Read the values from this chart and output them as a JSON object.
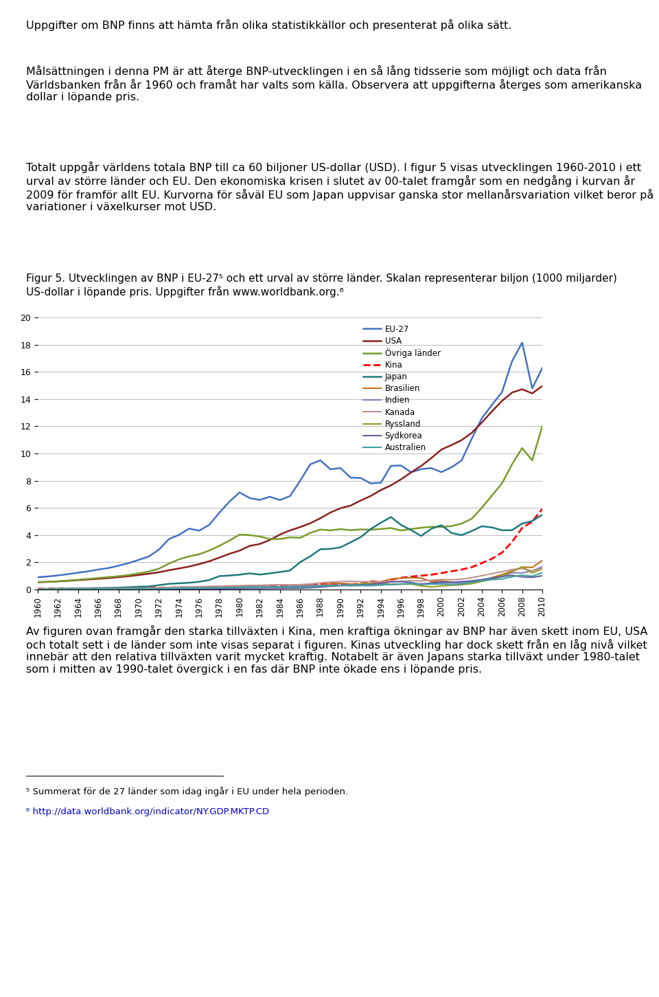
{
  "years": [
    1960,
    1961,
    1962,
    1963,
    1964,
    1965,
    1966,
    1967,
    1968,
    1969,
    1970,
    1971,
    1972,
    1973,
    1974,
    1975,
    1976,
    1977,
    1978,
    1979,
    1980,
    1981,
    1982,
    1983,
    1984,
    1985,
    1986,
    1987,
    1988,
    1989,
    1990,
    1991,
    1992,
    1993,
    1994,
    1995,
    1996,
    1997,
    1998,
    1999,
    2000,
    2001,
    2002,
    2003,
    2004,
    2005,
    2006,
    2007,
    2008,
    2009,
    2010
  ],
  "EU27": [
    0.91,
    0.96,
    1.04,
    1.13,
    1.24,
    1.34,
    1.47,
    1.58,
    1.75,
    1.94,
    2.18,
    2.43,
    2.93,
    3.71,
    4.02,
    4.48,
    4.33,
    4.76,
    5.65,
    6.46,
    7.14,
    6.72,
    6.59,
    6.82,
    6.58,
    6.87,
    7.99,
    9.2,
    9.5,
    8.84,
    8.93,
    8.23,
    8.2,
    7.8,
    7.85,
    9.09,
    9.12,
    8.62,
    8.85,
    8.93,
    8.63,
    8.99,
    9.48,
    11.08,
    12.58,
    13.57,
    14.5,
    16.78,
    18.15,
    14.79,
    16.28
  ],
  "USA": [
    0.54,
    0.56,
    0.6,
    0.64,
    0.69,
    0.74,
    0.79,
    0.84,
    0.91,
    0.98,
    1.07,
    1.16,
    1.27,
    1.42,
    1.55,
    1.69,
    1.87,
    2.08,
    2.35,
    2.63,
    2.86,
    3.21,
    3.35,
    3.64,
    4.04,
    4.35,
    4.59,
    4.87,
    5.24,
    5.66,
    5.98,
    6.17,
    6.54,
    6.88,
    7.31,
    7.66,
    8.1,
    8.61,
    9.09,
    9.66,
    10.29,
    10.62,
    10.98,
    11.51,
    12.27,
    13.09,
    13.86,
    14.48,
    14.72,
    14.42,
    14.96
  ],
  "Ovriga_lander": [
    0.55,
    0.57,
    0.61,
    0.66,
    0.72,
    0.78,
    0.85,
    0.91,
    0.98,
    1.06,
    1.19,
    1.32,
    1.53,
    1.91,
    2.22,
    2.44,
    2.59,
    2.87,
    3.21,
    3.6,
    4.04,
    4.0,
    3.9,
    3.72,
    3.71,
    3.84,
    3.8,
    4.16,
    4.41,
    4.35,
    4.44,
    4.36,
    4.42,
    4.4,
    4.45,
    4.52,
    4.34,
    4.45,
    4.54,
    4.61,
    4.6,
    4.66,
    4.85,
    5.2,
    6.0,
    6.9,
    7.8,
    9.2,
    10.4,
    9.5,
    12.0
  ],
  "Kina": [
    0.06,
    0.06,
    0.07,
    0.07,
    0.07,
    0.07,
    0.08,
    0.08,
    0.09,
    0.1,
    0.11,
    0.12,
    0.13,
    0.14,
    0.15,
    0.16,
    0.15,
    0.17,
    0.15,
    0.18,
    0.19,
    0.2,
    0.21,
    0.23,
    0.26,
    0.31,
    0.3,
    0.32,
    0.4,
    0.45,
    0.36,
    0.38,
    0.43,
    0.61,
    0.56,
    0.73,
    0.86,
    0.95,
    1.02,
    1.09,
    1.21,
    1.34,
    1.47,
    1.64,
    1.94,
    2.26,
    2.71,
    3.49,
    4.52,
    4.99,
    5.93
  ],
  "Japan": [
    0.04,
    0.05,
    0.06,
    0.07,
    0.08,
    0.09,
    0.11,
    0.12,
    0.14,
    0.17,
    0.21,
    0.23,
    0.32,
    0.42,
    0.46,
    0.5,
    0.57,
    0.7,
    0.99,
    1.03,
    1.09,
    1.19,
    1.1,
    1.19,
    1.29,
    1.4,
    2.01,
    2.44,
    2.96,
    2.99,
    3.1,
    3.47,
    3.85,
    4.45,
    4.91,
    5.33,
    4.75,
    4.37,
    3.94,
    4.47,
    4.73,
    4.16,
    4.0,
    4.3,
    4.65,
    4.57,
    4.36,
    4.36,
    4.85,
    5.04,
    5.49
  ],
  "Brasilien": [
    0.02,
    0.02,
    0.03,
    0.03,
    0.04,
    0.04,
    0.04,
    0.04,
    0.05,
    0.06,
    0.07,
    0.08,
    0.09,
    0.11,
    0.14,
    0.16,
    0.18,
    0.22,
    0.24,
    0.23,
    0.24,
    0.26,
    0.27,
    0.19,
    0.19,
    0.22,
    0.26,
    0.3,
    0.32,
    0.43,
    0.46,
    0.41,
    0.39,
    0.43,
    0.55,
    0.77,
    0.84,
    0.87,
    0.84,
    0.59,
    0.64,
    0.55,
    0.51,
    0.55,
    0.66,
    0.88,
    1.09,
    1.37,
    1.65,
    1.62,
    2.14
  ],
  "Indien": [
    0.04,
    0.04,
    0.04,
    0.05,
    0.05,
    0.05,
    0.05,
    0.06,
    0.06,
    0.06,
    0.06,
    0.07,
    0.07,
    0.08,
    0.1,
    0.1,
    0.1,
    0.11,
    0.12,
    0.13,
    0.16,
    0.19,
    0.2,
    0.22,
    0.21,
    0.23,
    0.24,
    0.28,
    0.3,
    0.3,
    0.32,
    0.27,
    0.29,
    0.28,
    0.33,
    0.37,
    0.4,
    0.42,
    0.43,
    0.47,
    0.48,
    0.49,
    0.52,
    0.62,
    0.72,
    0.83,
    0.94,
    1.24,
    1.22,
    1.37,
    1.68
  ],
  "Kanada": [
    0.04,
    0.04,
    0.05,
    0.05,
    0.06,
    0.06,
    0.07,
    0.07,
    0.08,
    0.09,
    0.09,
    0.1,
    0.12,
    0.15,
    0.17,
    0.19,
    0.21,
    0.23,
    0.25,
    0.27,
    0.28,
    0.31,
    0.31,
    0.34,
    0.35,
    0.35,
    0.36,
    0.41,
    0.49,
    0.54,
    0.59,
    0.6,
    0.58,
    0.57,
    0.58,
    0.6,
    0.61,
    0.64,
    0.63,
    0.68,
    0.74,
    0.72,
    0.76,
    0.87,
    1.02,
    1.17,
    1.31,
    1.47,
    1.55,
    1.37,
    1.58
  ],
  "Ryssland": [
    null,
    null,
    null,
    null,
    null,
    null,
    null,
    null,
    null,
    null,
    null,
    null,
    null,
    null,
    null,
    null,
    null,
    null,
    null,
    null,
    null,
    null,
    null,
    null,
    null,
    null,
    null,
    null,
    null,
    null,
    null,
    null,
    0.46,
    0.44,
    0.4,
    0.39,
    0.39,
    0.4,
    0.27,
    0.19,
    0.26,
    0.31,
    0.35,
    0.43,
    0.59,
    0.76,
    0.99,
    1.3,
    1.66,
    1.22,
    1.52
  ],
  "Sydkorea": [
    0.004,
    0.004,
    0.005,
    0.005,
    0.006,
    0.007,
    0.008,
    0.009,
    0.01,
    0.01,
    0.01,
    0.01,
    0.01,
    0.01,
    0.02,
    0.02,
    0.03,
    0.04,
    0.05,
    0.06,
    0.06,
    0.07,
    0.07,
    0.08,
    0.09,
    0.1,
    0.1,
    0.13,
    0.18,
    0.24,
    0.28,
    0.33,
    0.35,
    0.38,
    0.46,
    0.56,
    0.58,
    0.52,
    0.35,
    0.48,
    0.56,
    0.53,
    0.58,
    0.64,
    0.72,
    0.84,
    0.95,
    1.05,
    0.93,
    0.9,
    1.01
  ],
  "Australien": [
    0.01,
    0.02,
    0.02,
    0.02,
    0.02,
    0.02,
    0.03,
    0.03,
    0.03,
    0.04,
    0.05,
    0.06,
    0.07,
    0.09,
    0.11,
    0.12,
    0.12,
    0.13,
    0.14,
    0.15,
    0.16,
    0.17,
    0.17,
    0.18,
    0.19,
    0.18,
    0.18,
    0.21,
    0.25,
    0.3,
    0.31,
    0.33,
    0.31,
    0.31,
    0.34,
    0.37,
    0.41,
    0.43,
    0.37,
    0.4,
    0.4,
    0.37,
    0.41,
    0.53,
    0.64,
    0.73,
    0.78,
    0.94,
    1.06,
    0.98,
    1.24
  ],
  "colors": {
    "EU27": "#4472C4",
    "USA": "#8B2020",
    "Ovriga_lander": "#7A9B2A",
    "Kina": "#FF0000",
    "Japan": "#1F7A7A",
    "Brasilien": "#C07020",
    "Indien": "#8080C0",
    "Kanada": "#C09090",
    "Ryssland": "#9B9B2A",
    "Sydkorea": "#6060A0",
    "Australien": "#40A0A0"
  },
  "ylim": [
    0,
    20
  ],
  "yticks": [
    0,
    2,
    4,
    6,
    8,
    10,
    12,
    14,
    16,
    18,
    20
  ],
  "background_color": "#FFFFFF",
  "grid_color": "#C0C0C0",
  "fontsize_body": 11.5,
  "fontsize_caption": 11.0,
  "fontsize_footnote": 9.5,
  "fontsize_tick": 8.5,
  "para1": "Uppgifter om BNP finns att hämta från olika statistikkällor och presenterat på olika sätt.",
  "para2": "Målsättningen i denna PM är att återge BNP-utvecklingen i en så lång tidsserie som möjligt och data från Världsbanken från år 1960 och framåt har valts som källa. Observera att uppgifterna återges som amerikanska dollar i löpande pris.",
  "para3": "Totalt uppgår världens totala BNP till ca 60 biljoner US-dollar (USD). I figur 5 visas utvecklingen 1960-2010 i ett urval av större länder och EU. Den ekonomiska krisen i slutet av 00-talet framgår som en nedgång i kurvan år 2009 för framför allt EU. Kurvorna för såväl EU som Japan uppvisar ganska stor mellanårsvariation vilket beror på variationer i växelkurser mot USD.",
  "fig_caption": "Figur 5. Utvecklingen av BNP i EU-27⁵ och ett urval av större länder. Skalan representerar biljon (1000 miljarder) US-dollar i löpande pris. Uppgifter från www.worldbank.org.⁶",
  "para4": "Av figuren ovan framgår den starka tillväxten i Kina, men kraftiga ökningar av BNP har även skett inom EU, USA och totalt sett i de länder som inte visas separat i figuren. Kinas utveckling har dock skett från en låg nivå vilket innebär att den relativa tillväxten varit mycket kraftig. Notabelt är även Japans starka tillväxt under 1980-talet som i mitten av 1990-talet övergick i en fas där BNP inte ökade ens i löpande pris.",
  "footnote5": "⁵ Summerat för de 27 länder som idag ingår i EU under hela perioden.",
  "footnote6": "⁶ http://data.worldbank.org/indicator/NY.GDP.MKTP.CD"
}
